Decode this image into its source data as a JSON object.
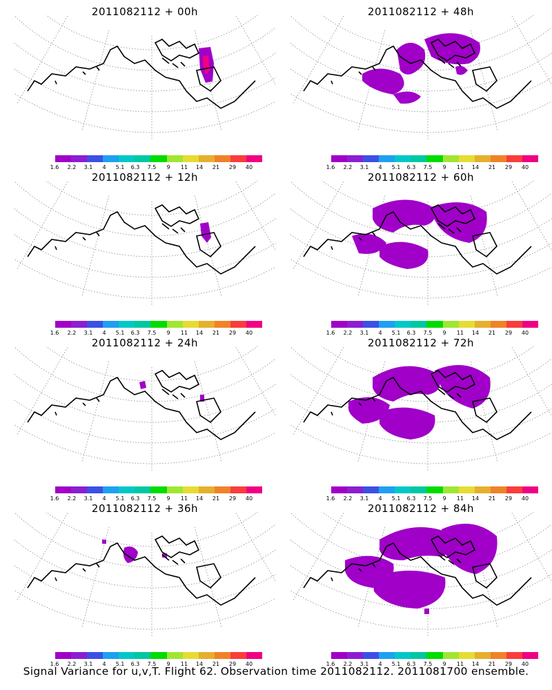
{
  "caption": "Signal Variance for u,v,T. Flight 62. Observation time 2011082112. 2011081700 ensemble.",
  "panels": [
    {
      "title": "2011082112 + 00h"
    },
    {
      "title": "2011082112 + 48h"
    },
    {
      "title": "2011082112 + 12h"
    },
    {
      "title": "2011082112 + 60h"
    },
    {
      "title": "2011082112 + 24h"
    },
    {
      "title": "2011082112 + 72h"
    },
    {
      "title": "2011082112 + 36h"
    },
    {
      "title": "2011082112 + 84h"
    }
  ],
  "colorbar": {
    "colors": [
      "#a000c8",
      "#8c1ed2",
      "#3c50e6",
      "#1ea0f0",
      "#00c8c8",
      "#00c8a0",
      "#00dc00",
      "#a0e632",
      "#e6dc32",
      "#e6af2d",
      "#f08228",
      "#fa3c3c",
      "#f00082"
    ],
    "labels": [
      "1.6",
      "2.2",
      "3.1",
      "4",
      "5.1",
      "6.3",
      "7.5",
      "9",
      "11",
      "14",
      "21",
      "29",
      "40"
    ]
  },
  "chart_data": [
    {
      "type": "heatmap",
      "title": "2011082112 + 00h",
      "variance_color": "#a000c8",
      "peak_color": "#f00082",
      "region": "small patch near Greenland"
    },
    {
      "type": "heatmap",
      "title": "2011082112 + 48h",
      "variance_color": "#a000c8",
      "region": "scattered patches across Arctic Canada and northern Atlantic"
    },
    {
      "type": "heatmap",
      "title": "2011082112 + 12h",
      "variance_color": "#a000c8",
      "region": "small patch near Greenland"
    },
    {
      "type": "heatmap",
      "title": "2011082112 + 60h",
      "variance_color": "#a000c8",
      "region": "broad band over Arctic and Beaufort Sea"
    },
    {
      "type": "heatmap",
      "title": "2011082112 + 24h",
      "variance_color": "#a000c8",
      "region": "tiny patches"
    },
    {
      "type": "heatmap",
      "title": "2011082112 + 72h",
      "variance_color": "#a000c8",
      "region": "broad band over Arctic and Alaska"
    },
    {
      "type": "heatmap",
      "title": "2011082112 + 36h",
      "variance_color": "#a000c8",
      "region": "small patches near Arctic islands"
    },
    {
      "type": "heatmap",
      "title": "2011082112 + 84h",
      "variance_color": "#a000c8",
      "region": "large area over Arctic, Alaska and Canada"
    }
  ]
}
